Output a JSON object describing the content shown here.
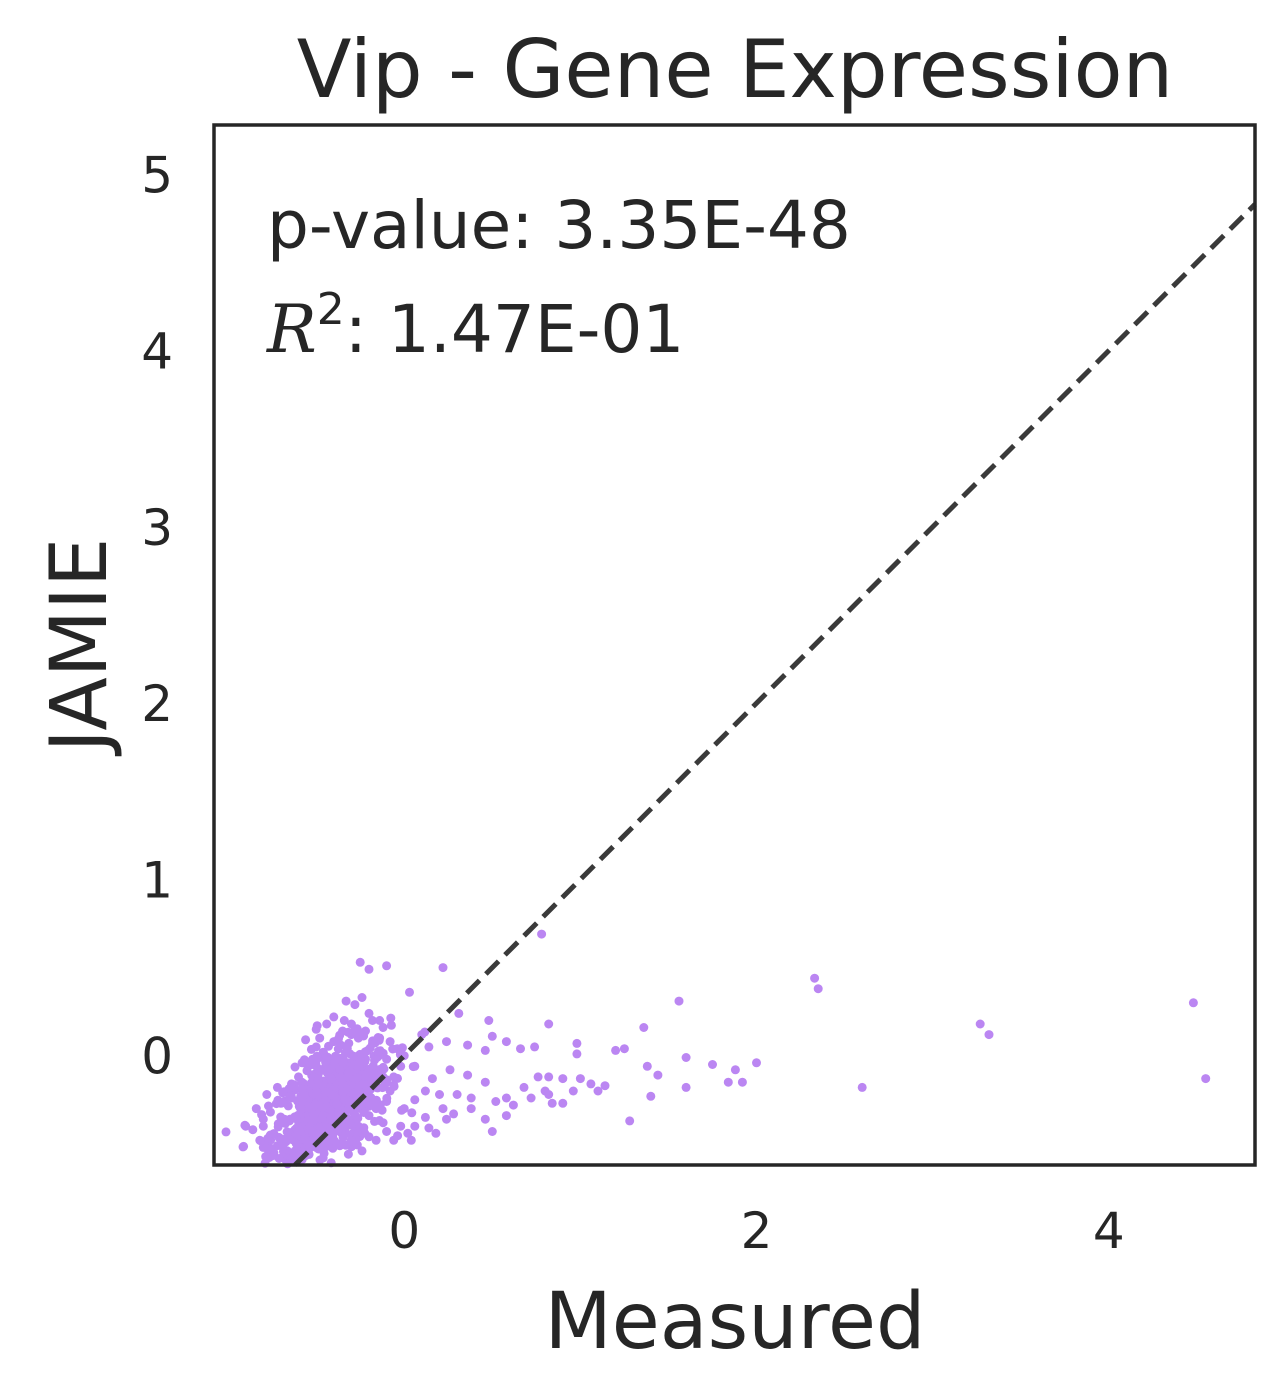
{
  "chart_data": {
    "type": "scatter",
    "title": "Vip - Gene Expression",
    "xlabel": "Measured",
    "ylabel": "JAMIE",
    "xlim": [
      -1.08,
      4.83
    ],
    "ylim": [
      -0.62,
      5.28
    ],
    "xticks": [
      0,
      2,
      4
    ],
    "yticks": [
      0,
      1,
      2,
      3,
      4,
      5
    ],
    "grid": false,
    "point_color": "#bb86f2",
    "line_color": "#3a3a3a",
    "reference_line": {
      "style": "dashed",
      "slope": 1,
      "intercept": 0
    },
    "annotations": {
      "pvalue_label": "p-value: 3.35E-48",
      "r2_symbol": "R",
      "r2_exponent": "2",
      "r2_value": ": 1.47E-01"
    },
    "points": [
      [
        0.78,
        0.69
      ],
      [
        -0.25,
        0.53
      ],
      [
        -0.2,
        0.49
      ],
      [
        -0.1,
        0.51
      ],
      [
        0.22,
        0.5
      ],
      [
        2.33,
        0.44
      ],
      [
        2.35,
        0.38
      ],
      [
        0.03,
        0.36
      ],
      [
        1.56,
        0.31
      ],
      [
        4.48,
        0.3
      ],
      [
        -0.33,
        0.31
      ],
      [
        -0.28,
        0.29
      ],
      [
        -0.24,
        0.33
      ],
      [
        -0.4,
        0.22
      ],
      [
        -0.18,
        0.2
      ],
      [
        0.31,
        0.24
      ],
      [
        0.48,
        0.2
      ],
      [
        0.82,
        0.18
      ],
      [
        1.36,
        0.16
      ],
      [
        3.27,
        0.18
      ],
      [
        3.32,
        0.12
      ],
      [
        -0.5,
        0.15
      ],
      [
        -0.35,
        0.14
      ],
      [
        -0.12,
        0.16
      ],
      [
        0.1,
        0.12
      ],
      [
        0.5,
        0.11
      ],
      [
        0.58,
        0.08
      ],
      [
        0.24,
        0.08
      ],
      [
        0.98,
        0.07
      ],
      [
        0.14,
        0.05
      ],
      [
        0.36,
        0.06
      ],
      [
        0.66,
        0.04
      ],
      [
        1.2,
        0.03
      ],
      [
        1.25,
        0.04
      ],
      [
        1.6,
        -0.01
      ],
      [
        1.75,
        -0.05
      ],
      [
        1.88,
        -0.08
      ],
      [
        2.0,
        -0.04
      ],
      [
        0.98,
        0.01
      ],
      [
        0.74,
        0.05
      ],
      [
        0.46,
        0.03
      ],
      [
        0.76,
        -0.12
      ],
      [
        0.82,
        -0.12
      ],
      [
        0.9,
        -0.13
      ],
      [
        1.0,
        -0.13
      ],
      [
        1.06,
        -0.16
      ],
      [
        1.14,
        -0.17
      ],
      [
        1.38,
        -0.06
      ],
      [
        1.44,
        -0.11
      ],
      [
        1.84,
        -0.15
      ],
      [
        1.92,
        -0.15
      ],
      [
        1.6,
        -0.18
      ],
      [
        4.55,
        -0.13
      ],
      [
        2.6,
        -0.18
      ],
      [
        0.68,
        -0.18
      ],
      [
        0.46,
        -0.15
      ],
      [
        0.36,
        -0.11
      ],
      [
        0.26,
        -0.08
      ],
      [
        0.16,
        -0.13
      ],
      [
        0.06,
        -0.06
      ],
      [
        0.12,
        -0.2
      ],
      [
        0.2,
        -0.22
      ],
      [
        0.3,
        -0.22
      ],
      [
        0.38,
        -0.24
      ],
      [
        0.52,
        -0.26
      ],
      [
        0.58,
        -0.24
      ],
      [
        0.82,
        -0.22
      ],
      [
        0.9,
        -0.27
      ],
      [
        0.84,
        -0.27
      ],
      [
        1.28,
        -0.37
      ],
      [
        0.62,
        -0.28
      ],
      [
        1.4,
        -0.23
      ],
      [
        0.06,
        -0.25
      ],
      [
        0.0,
        -0.3
      ],
      [
        0.12,
        -0.35
      ],
      [
        0.22,
        -0.3
      ],
      [
        0.24,
        -0.36
      ],
      [
        0.14,
        -0.41
      ],
      [
        0.06,
        -0.4
      ],
      [
        -0.02,
        -0.4
      ],
      [
        0.46,
        -0.36
      ],
      [
        0.5,
        -0.43
      ],
      [
        0.18,
        -0.44
      ],
      [
        -0.1,
        -0.43
      ],
      [
        0.02,
        -0.44
      ],
      [
        0.04,
        -0.48
      ],
      [
        -0.06,
        -0.48
      ],
      [
        0.28,
        -0.33
      ],
      [
        0.38,
        -0.3
      ],
      [
        0.58,
        -0.34
      ],
      [
        0.72,
        -0.24
      ],
      [
        0.8,
        -0.2
      ],
      [
        0.96,
        -0.2
      ],
      [
        1.1,
        -0.2
      ],
      [
        -0.16,
        -0.3
      ],
      [
        -0.12,
        -0.38
      ],
      [
        -0.2,
        -0.46
      ],
      [
        -0.26,
        -0.4
      ],
      [
        -0.28,
        -0.49
      ],
      [
        -0.34,
        -0.44
      ],
      [
        -0.4,
        -0.5
      ],
      [
        -0.44,
        -0.46
      ],
      [
        -0.5,
        -0.52
      ],
      [
        -0.54,
        -0.44
      ],
      [
        -0.58,
        -0.5
      ],
      [
        -0.62,
        -0.54
      ],
      [
        -0.66,
        -0.58
      ],
      [
        -0.6,
        -0.6
      ],
      [
        -0.54,
        -0.56
      ],
      [
        -0.46,
        -0.58
      ],
      [
        -0.72,
        -0.51
      ],
      [
        -0.76,
        -0.45
      ],
      [
        -0.8,
        -0.4
      ],
      [
        -0.76,
        -0.32
      ],
      [
        -0.78,
        -0.22
      ],
      [
        -0.72,
        -0.18
      ],
      [
        -0.7,
        -0.27
      ],
      [
        -0.68,
        -0.36
      ],
      [
        -0.84,
        -0.3
      ],
      [
        -0.8,
        -0.36
      ],
      [
        -0.86,
        -0.42
      ],
      [
        -0.9,
        -0.4
      ],
      [
        -0.82,
        -0.48
      ],
      [
        -0.74,
        -0.55
      ],
      [
        -0.64,
        -0.16
      ],
      [
        -0.6,
        -0.12
      ],
      [
        -0.58,
        -0.04
      ],
      [
        -0.52,
        -0.02
      ],
      [
        -0.5,
        0.05
      ],
      [
        -0.46,
        0.02
      ],
      [
        -0.42,
        -0.06
      ],
      [
        -0.4,
        0.08
      ],
      [
        -0.36,
        0.06
      ],
      [
        -0.3,
        0.12
      ],
      [
        -0.26,
        0.1
      ],
      [
        -0.22,
        0.14
      ],
      [
        -0.18,
        0.07
      ],
      [
        -0.14,
        0.1
      ],
      [
        -0.08,
        0.08
      ],
      [
        -0.04,
        0.04
      ],
      [
        0.0,
        0.0
      ],
      [
        -0.02,
        -0.06
      ],
      [
        -0.06,
        -0.12
      ],
      [
        -0.1,
        -0.02
      ],
      [
        -0.14,
        0.02
      ],
      [
        -0.48,
        0.1
      ],
      [
        -0.34,
        0.2
      ],
      [
        -0.3,
        0.18
      ],
      [
        -0.2,
        0.24
      ],
      [
        -0.14,
        0.2
      ],
      [
        -0.56,
        0.09
      ],
      [
        -0.44,
        0.18
      ],
      [
        -0.24,
        -0.54
      ],
      [
        -0.16,
        -0.48
      ],
      [
        -0.62,
        -0.42
      ],
      [
        -0.56,
        -0.34
      ],
      [
        -0.46,
        -0.3
      ],
      [
        -0.38,
        -0.24
      ],
      [
        -0.3,
        -0.2
      ],
      [
        -0.24,
        -0.14
      ],
      [
        -0.18,
        -0.08
      ],
      [
        -0.12,
        -0.12
      ],
      [
        -0.08,
        -0.2
      ],
      [
        -0.1,
        -0.26
      ],
      [
        -0.5,
        -0.2
      ],
      [
        -0.44,
        -0.14
      ],
      [
        -0.36,
        -0.1
      ],
      [
        -0.32,
        -0.04
      ],
      [
        -0.28,
        -0.1
      ],
      [
        -0.22,
        -0.02
      ],
      [
        -0.16,
        -0.18
      ],
      [
        -0.2,
        -0.34
      ],
      [
        -0.32,
        -0.36
      ],
      [
        -0.4,
        -0.4
      ],
      [
        -0.48,
        -0.38
      ],
      [
        -0.58,
        -0.28
      ],
      [
        -0.64,
        -0.24
      ],
      [
        -0.66,
        -0.46
      ],
      [
        -0.52,
        -0.48
      ],
      [
        -0.36,
        -0.5
      ]
    ],
    "cluster": {
      "center": [
        -0.42,
        -0.28
      ],
      "spread": [
        0.17,
        0.15
      ],
      "count": 700,
      "tilt": 0.55
    }
  }
}
